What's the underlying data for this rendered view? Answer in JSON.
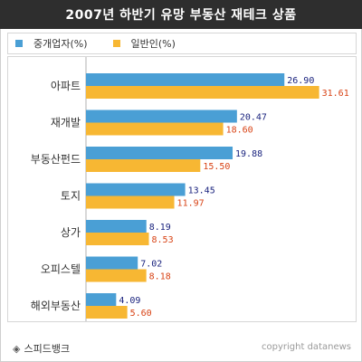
{
  "chart_data": {
    "type": "bar",
    "orientation": "horizontal",
    "title": "2007년 하반기 유망 부동산 재테크 상품",
    "categories": [
      "아파트",
      "재개발",
      "부동산펀드",
      "토지",
      "상가",
      "오피스텔",
      "해외부동산"
    ],
    "series": [
      {
        "name": "중개업자(%)",
        "values": [
          26.9,
          20.47,
          19.88,
          13.45,
          8.19,
          7.02,
          4.09
        ],
        "value_labels": [
          "26.90",
          "20.47",
          "19.88",
          "13.45",
          "8.19",
          "7.02",
          "4.09"
        ]
      },
      {
        "name": "일반인(%)",
        "values": [
          31.61,
          18.6,
          15.5,
          11.97,
          8.53,
          8.18,
          5.6
        ],
        "value_labels": [
          "31.61",
          "18.60",
          "15.50",
          "11.97",
          "8.53",
          "8.18",
          "5.60"
        ]
      }
    ],
    "xlim": [
      0,
      40
    ],
    "grid": false,
    "legend": "top-left",
    "colors": {
      "series1": "#4a9fd5",
      "series2": "#f7b733",
      "series1_label": "#1a237e",
      "series2_label": "#d84315"
    }
  },
  "footer": {
    "source_icon": "◈",
    "source": "스피드뱅크",
    "credit": "copyright datanews"
  }
}
